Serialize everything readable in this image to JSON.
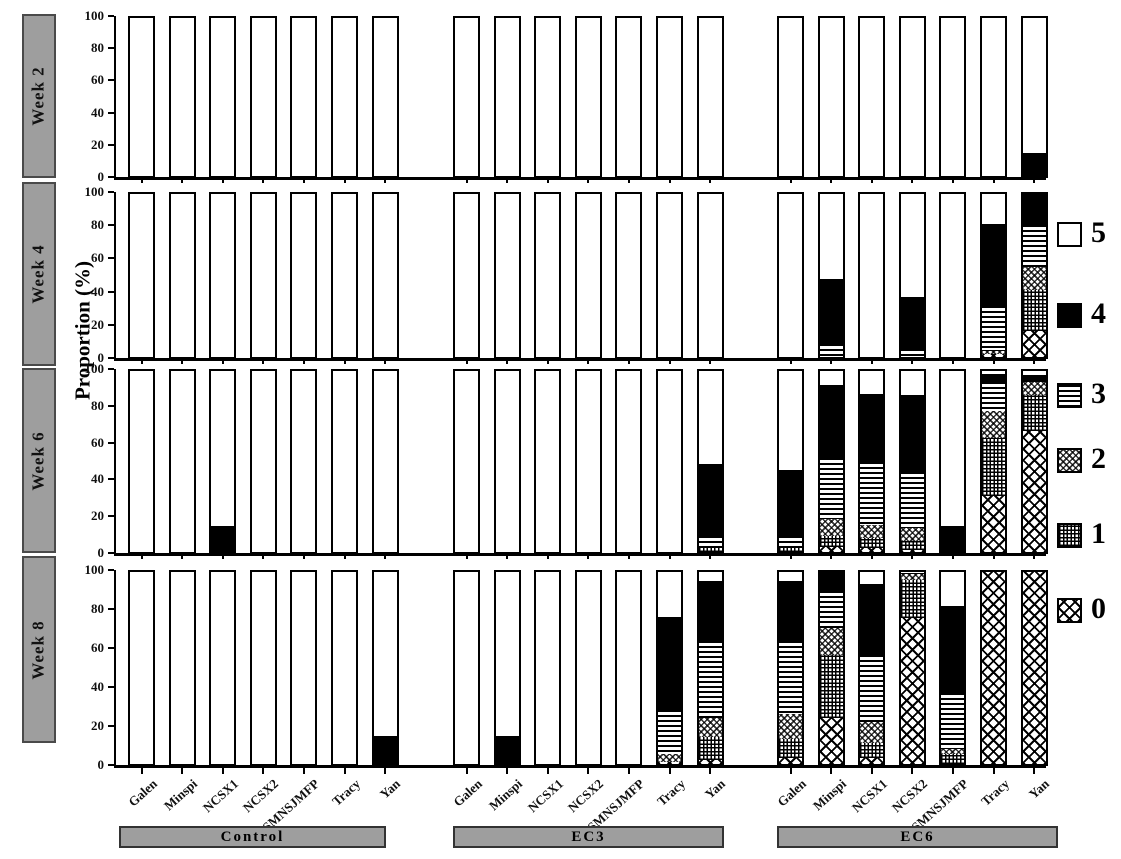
{
  "chart_data": {
    "type": "bar",
    "subtype": "stacked-percent-multipanel",
    "title": "",
    "ylabel": "Proportion (%)",
    "yticks": [
      0,
      20,
      40,
      60,
      80,
      100
    ],
    "ylim": [
      0,
      100
    ],
    "panels": [
      "Week 2",
      "Week 4",
      "Week 6",
      "Week 8"
    ],
    "groups": [
      "Control",
      "EC3",
      "EC6"
    ],
    "categories": [
      "Galen",
      "Minspi",
      "NCSX1",
      "NCSX2",
      "SMNSJMFP",
      "Tracy",
      "Yan"
    ],
    "legend": {
      "position": "right",
      "entries": [
        {
          "label": "5",
          "pattern": "white-open"
        },
        {
          "label": "4",
          "pattern": "solid-black"
        },
        {
          "label": "3",
          "pattern": "horizontal-lines"
        },
        {
          "label": "2",
          "pattern": "diagonal-crosshatch"
        },
        {
          "label": "1",
          "pattern": "fine-grid"
        },
        {
          "label": "0",
          "pattern": "diamond-lattice"
        }
      ]
    },
    "series_note": "values per bar are percentages for rating classes [0,1,2,3,4,5], stacked bottom(0) to top(5)",
    "values": {
      "Week 2": {
        "Control": [
          [
            0,
            0,
            0,
            0,
            0,
            100
          ],
          [
            0,
            0,
            0,
            0,
            0,
            100
          ],
          [
            0,
            0,
            0,
            0,
            0,
            100
          ],
          [
            0,
            0,
            0,
            0,
            0,
            100
          ],
          [
            0,
            0,
            0,
            0,
            0,
            100
          ],
          [
            0,
            0,
            0,
            0,
            0,
            100
          ],
          [
            0,
            0,
            0,
            0,
            0,
            100
          ]
        ],
        "EC3": [
          [
            0,
            0,
            0,
            0,
            0,
            100
          ],
          [
            0,
            0,
            0,
            0,
            0,
            100
          ],
          [
            0,
            0,
            0,
            0,
            0,
            100
          ],
          [
            0,
            0,
            0,
            0,
            0,
            100
          ],
          [
            0,
            0,
            0,
            0,
            0,
            100
          ],
          [
            0,
            0,
            0,
            0,
            0,
            100
          ],
          [
            0,
            0,
            0,
            0,
            0,
            100
          ]
        ],
        "EC6": [
          [
            0,
            0,
            0,
            0,
            0,
            100
          ],
          [
            0,
            0,
            0,
            0,
            0,
            100
          ],
          [
            0,
            0,
            0,
            0,
            0,
            100
          ],
          [
            0,
            0,
            0,
            0,
            0,
            100
          ],
          [
            0,
            0,
            0,
            0,
            0,
            100
          ],
          [
            0,
            0,
            0,
            0,
            0,
            100
          ],
          [
            0,
            0,
            0,
            0,
            14,
            86
          ]
        ]
      },
      "Week 4": {
        "Control": [
          [
            0,
            0,
            0,
            0,
            0,
            100
          ],
          [
            0,
            0,
            0,
            0,
            0,
            100
          ],
          [
            0,
            0,
            0,
            0,
            0,
            100
          ],
          [
            0,
            0,
            0,
            0,
            0,
            100
          ],
          [
            0,
            0,
            0,
            0,
            0,
            100
          ],
          [
            0,
            0,
            0,
            0,
            0,
            100
          ],
          [
            0,
            0,
            0,
            0,
            0,
            100
          ]
        ],
        "EC3": [
          [
            0,
            0,
            0,
            0,
            0,
            100
          ],
          [
            0,
            0,
            0,
            0,
            0,
            100
          ],
          [
            0,
            0,
            0,
            0,
            0,
            100
          ],
          [
            0,
            0,
            0,
            0,
            0,
            100
          ],
          [
            0,
            0,
            0,
            0,
            0,
            100
          ],
          [
            0,
            0,
            0,
            0,
            0,
            100
          ],
          [
            0,
            0,
            0,
            0,
            0,
            100
          ]
        ],
        "EC6": [
          [
            0,
            0,
            0,
            0,
            0,
            100
          ],
          [
            0,
            0,
            0,
            8,
            39,
            53
          ],
          [
            0,
            0,
            0,
            0,
            0,
            100
          ],
          [
            0,
            0,
            0,
            5,
            31,
            64
          ],
          [
            0,
            0,
            0,
            0,
            0,
            100
          ],
          [
            2,
            0,
            2,
            27,
            50,
            19
          ],
          [
            16,
            25,
            14,
            26,
            19,
            0
          ]
        ]
      },
      "Week 6": {
        "Control": [
          [
            0,
            0,
            0,
            0,
            0,
            100
          ],
          [
            0,
            0,
            0,
            0,
            0,
            100
          ],
          [
            0,
            0,
            0,
            0,
            14,
            86
          ],
          [
            0,
            0,
            0,
            0,
            0,
            100
          ],
          [
            0,
            0,
            0,
            0,
            0,
            100
          ],
          [
            0,
            0,
            0,
            0,
            0,
            100
          ],
          [
            0,
            0,
            0,
            0,
            0,
            100
          ]
        ],
        "EC3": [
          [
            0,
            0,
            0,
            0,
            0,
            100
          ],
          [
            0,
            0,
            0,
            0,
            0,
            100
          ],
          [
            0,
            0,
            0,
            0,
            0,
            100
          ],
          [
            0,
            0,
            0,
            0,
            0,
            100
          ],
          [
            0,
            0,
            0,
            0,
            0,
            100
          ],
          [
            0,
            0,
            0,
            0,
            0,
            100
          ],
          [
            0,
            2,
            0,
            7,
            39,
            52
          ]
        ],
        "EC6": [
          [
            0,
            2,
            0,
            7,
            36,
            55
          ],
          [
            3,
            6,
            9,
            34,
            40,
            8
          ],
          [
            2,
            6,
            7,
            35,
            37,
            13
          ],
          [
            1,
            5,
            7,
            31,
            42,
            14
          ],
          [
            0,
            0,
            0,
            0,
            14,
            86
          ],
          [
            31,
            32,
            15,
            16,
            4,
            2
          ],
          [
            67,
            20,
            7,
            0,
            3,
            3
          ]
        ]
      },
      "Week 8": {
        "Control": [
          [
            0,
            0,
            0,
            0,
            0,
            100
          ],
          [
            0,
            0,
            0,
            0,
            0,
            100
          ],
          [
            0,
            0,
            0,
            0,
            0,
            100
          ],
          [
            0,
            0,
            0,
            0,
            0,
            100
          ],
          [
            0,
            0,
            0,
            0,
            0,
            100
          ],
          [
            0,
            0,
            0,
            0,
            0,
            100
          ],
          [
            0,
            0,
            0,
            0,
            14,
            86
          ]
        ],
        "EC3": [
          [
            0,
            0,
            0,
            0,
            0,
            100
          ],
          [
            0,
            0,
            0,
            0,
            14,
            86
          ],
          [
            0,
            0,
            0,
            0,
            0,
            100
          ],
          [
            0,
            0,
            0,
            0,
            0,
            100
          ],
          [
            0,
            0,
            0,
            0,
            0,
            100
          ],
          [
            1,
            0,
            4,
            23,
            48,
            24
          ],
          [
            2,
            12,
            10,
            40,
            31,
            5
          ]
        ],
        "EC6": [
          [
            3,
            10,
            13,
            38,
            31,
            5
          ],
          [
            24,
            33,
            14,
            19,
            10,
            0
          ],
          [
            3,
            8,
            11,
            35,
            36,
            7
          ],
          [
            76,
            20,
            3,
            0,
            0,
            1
          ],
          [
            0,
            5,
            3,
            29,
            45,
            18
          ],
          [
            100,
            0,
            0,
            0,
            0,
            0
          ],
          [
            100,
            0,
            0,
            0,
            0,
            0
          ]
        ]
      }
    }
  }
}
